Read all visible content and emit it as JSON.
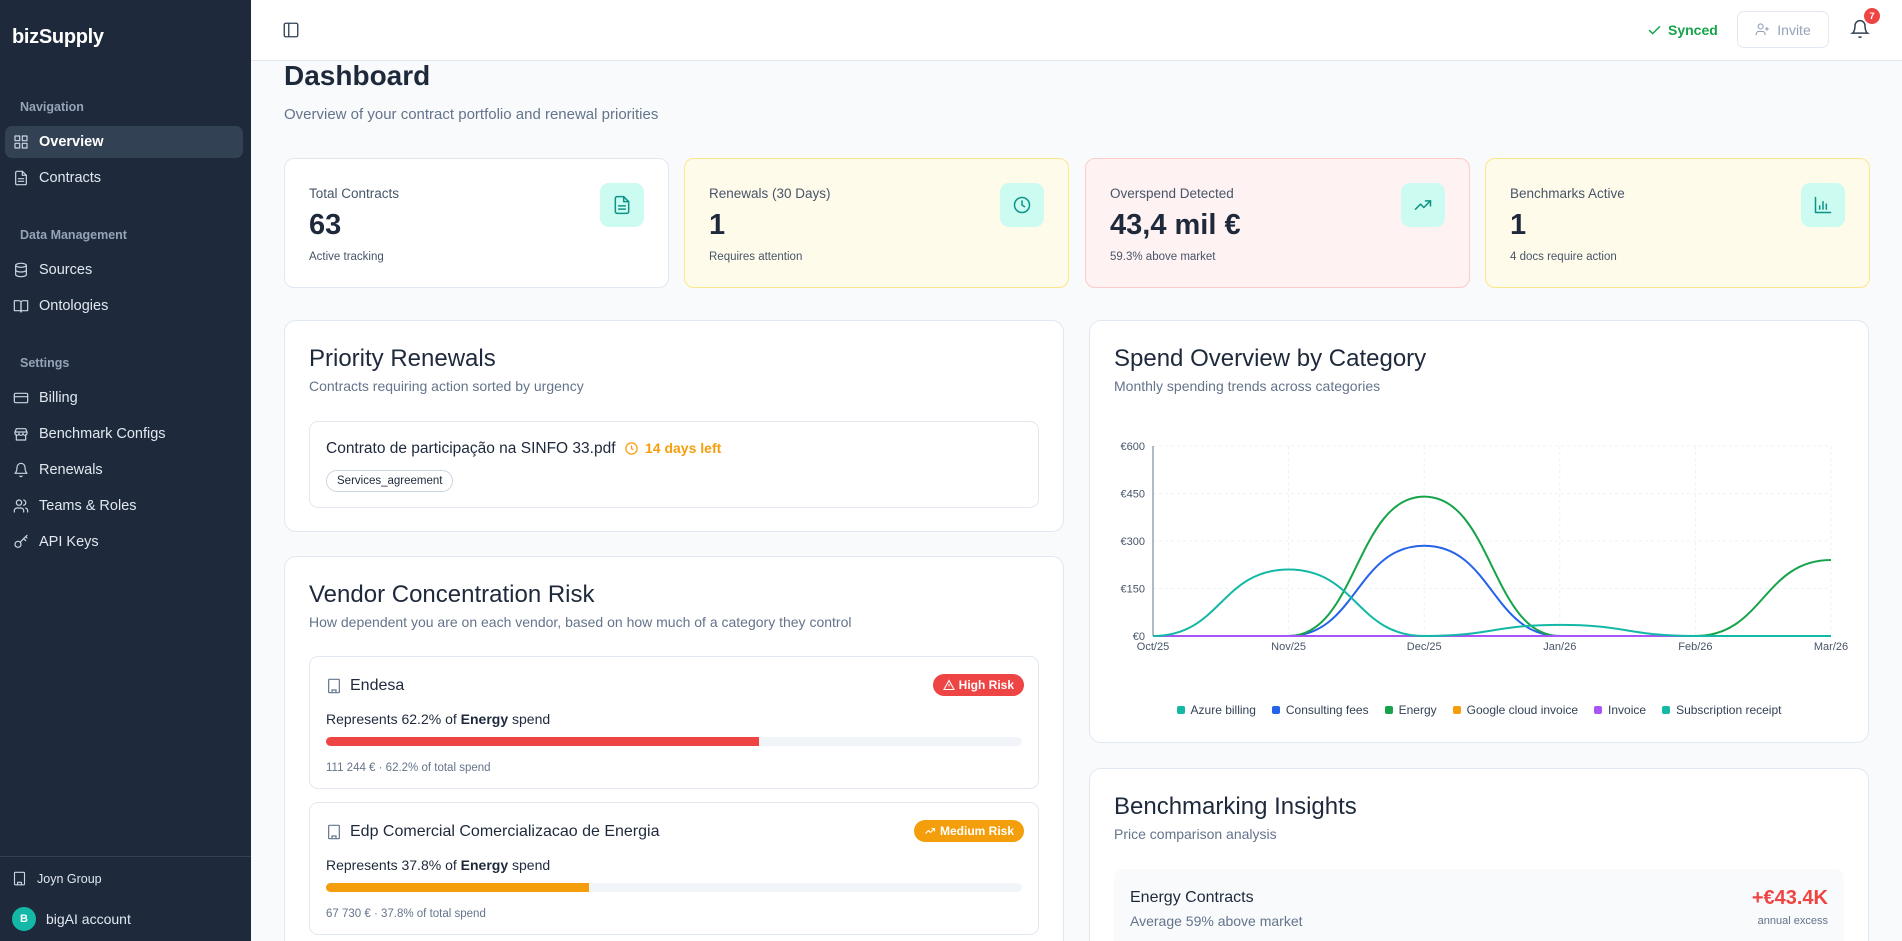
{
  "app": {
    "brand": "bizSupply"
  },
  "sidebar": {
    "sections": {
      "navigation": "Navigation",
      "data_management": "Data Management",
      "settings": "Settings"
    },
    "items": {
      "overview": "Overview",
      "contracts": "Contracts",
      "sources": "Sources",
      "ontologies": "Ontologies",
      "billing": "Billing",
      "benchmark_configs": "Benchmark Configs",
      "renewals": "Renewals",
      "teams_roles": "Teams & Roles",
      "api_keys": "API Keys"
    },
    "footer": {
      "org": "Joyn Group",
      "account_initial": "B",
      "account": "bigAI account"
    }
  },
  "topbar": {
    "sync_status": "Synced",
    "invite_label": "Invite",
    "notification_count": "7"
  },
  "page": {
    "title": "Dashboard",
    "subtitle": "Overview of your contract portfolio and renewal priorities"
  },
  "stats": [
    {
      "label": "Total Contracts",
      "value": "63",
      "note": "Active tracking",
      "icon": "document-icon"
    },
    {
      "label": "Renewals (30 Days)",
      "value": "1",
      "note": "Requires attention",
      "icon": "clock-icon"
    },
    {
      "label": "Overspend Detected",
      "value": "43,4 mil €",
      "note": "59.3% above market",
      "icon": "trending-up-icon"
    },
    {
      "label": "Benchmarks Active",
      "value": "1",
      "note": "4 docs require action",
      "icon": "bar-chart-icon"
    }
  ],
  "priority_renewals": {
    "title": "Priority Renewals",
    "subtitle": "Contracts requiring action sorted by urgency",
    "items": [
      {
        "name": "Contrato de participação na SINFO 33.pdf",
        "days_left": "14 days left",
        "tag": "Services_agreement"
      }
    ]
  },
  "vendor_risk": {
    "title": "Vendor Concentration Risk",
    "subtitle": "How dependent you are on each vendor, based on how much of a category they control",
    "vendors": [
      {
        "name": "Endesa",
        "risk": "High Risk",
        "risk_color": "#ef4444",
        "rep_prefix": "Represents 62.2% of",
        "category": "Energy",
        "rep_suffix": "spend",
        "share_fraction": 0.622,
        "meta": "111 244 € · 62.2% of total spend"
      },
      {
        "name": "Edp Comercial Comercializacao de Energia",
        "risk": "Medium Risk",
        "risk_color": "#f59e0b",
        "rep_prefix": "Represents 37.8% of",
        "category": "Energy",
        "rep_suffix": "spend",
        "share_fraction": 0.378,
        "meta": "67 730 € · 37.8% of total spend"
      }
    ]
  },
  "spend_overview": {
    "title": "Spend Overview by Category",
    "subtitle": "Monthly spending trends across categories"
  },
  "chart_data": {
    "type": "line",
    "x": [
      "Oct/25",
      "Nov/25",
      "Dec/25",
      "Jan/26",
      "Feb/26",
      "Mar/26"
    ],
    "y_ticks": [
      "€0",
      "€150",
      "€300",
      "€450",
      "€600"
    ],
    "ylim": [
      0,
      600
    ],
    "grid": true,
    "legend_position": "bottom",
    "series": [
      {
        "name": "Azure billing",
        "color": "#14b8a6",
        "values": [
          0,
          0,
          0,
          0,
          0,
          0
        ]
      },
      {
        "name": "Consulting fees",
        "color": "#2563eb",
        "values": [
          0,
          0,
          285,
          0,
          0,
          0
        ]
      },
      {
        "name": "Energy",
        "color": "#16a34a",
        "values": [
          0,
          0,
          440,
          0,
          0,
          240
        ]
      },
      {
        "name": "Google cloud invoice",
        "color": "#f59e0b",
        "values": [
          0,
          0,
          0,
          0,
          0,
          0
        ]
      },
      {
        "name": "Invoice",
        "color": "#a855f7",
        "values": [
          0,
          0,
          0,
          0,
          0,
          0
        ]
      },
      {
        "name": "Subscription receipt",
        "color": "#14b8a6",
        "values": [
          0,
          210,
          0,
          35,
          0,
          0
        ]
      }
    ]
  },
  "benchmarking": {
    "title": "Benchmarking Insights",
    "subtitle": "Price comparison analysis",
    "rows": [
      {
        "title": "Energy Contracts",
        "subtitle": "Average 59% above market",
        "value": "+€43.4K",
        "note": "annual excess"
      }
    ]
  }
}
